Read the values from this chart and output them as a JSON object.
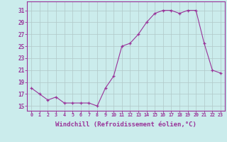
{
  "x": [
    0,
    1,
    2,
    3,
    4,
    5,
    6,
    7,
    8,
    9,
    10,
    11,
    12,
    13,
    14,
    15,
    16,
    17,
    18,
    19,
    20,
    21,
    22,
    23
  ],
  "y": [
    18,
    17,
    16,
    16.5,
    15.5,
    15.5,
    15.5,
    15.5,
    15,
    18,
    20,
    25,
    25.5,
    27,
    29,
    30.5,
    31,
    31,
    30.5,
    31,
    31,
    25.5,
    21,
    20.5
  ],
  "line_color": "#993399",
  "marker_color": "#993399",
  "bg_color": "#cbecec",
  "grid_color": "#b0c8c8",
  "xlabel": "Windchill (Refroidissement éolien,°C)",
  "xlabel_fontsize": 6.5,
  "ytick_values": [
    15,
    17,
    19,
    21,
    23,
    25,
    27,
    29,
    31
  ],
  "ylim": [
    14.2,
    32.5
  ],
  "xlim": [
    -0.5,
    23.5
  ]
}
